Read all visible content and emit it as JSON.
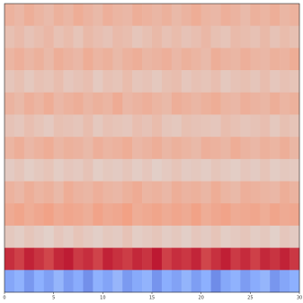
{
  "chart_data": {
    "type": "heatmap",
    "colormap": "coolwarm",
    "zlim": [
      -1,
      1
    ],
    "x": [
      0,
      1,
      2,
      3,
      4,
      5,
      6,
      7,
      8,
      9,
      10,
      11,
      12,
      13,
      14,
      15,
      16,
      17,
      18,
      19,
      20,
      21,
      22,
      23,
      24,
      25,
      26,
      27,
      28,
      29
    ],
    "xlim": [
      0,
      30
    ],
    "xticks": [
      0,
      5,
      10,
      15,
      20,
      25,
      30
    ],
    "z": [
      [
        0.32,
        0.28,
        0.35,
        0.3,
        0.26,
        0.33,
        0.29,
        0.36,
        0.31,
        0.27,
        0.34,
        0.3,
        0.28,
        0.35,
        0.32,
        0.29,
        0.33,
        0.27,
        0.31,
        0.36,
        0.3,
        0.28,
        0.34,
        0.31,
        0.26,
        0.33,
        0.3,
        0.35,
        0.29,
        0.32
      ],
      [
        0.22,
        0.26,
        0.2,
        0.24,
        0.28,
        0.21,
        0.25,
        0.19,
        0.27,
        0.23,
        0.2,
        0.26,
        0.24,
        0.18,
        0.22,
        0.27,
        0.21,
        0.25,
        0.2,
        0.23,
        0.28,
        0.22,
        0.19,
        0.26,
        0.24,
        0.21,
        0.27,
        0.2,
        0.25,
        0.22
      ],
      [
        0.3,
        0.34,
        0.29,
        0.33,
        0.27,
        0.35,
        0.31,
        0.28,
        0.36,
        0.3,
        0.33,
        0.27,
        0.32,
        0.35,
        0.29,
        0.31,
        0.34,
        0.28,
        0.33,
        0.3,
        0.26,
        0.35,
        0.31,
        0.29,
        0.34,
        0.3,
        0.28,
        0.33,
        0.31,
        0.36
      ],
      [
        0.18,
        0.22,
        0.16,
        0.21,
        0.19,
        0.24,
        0.17,
        0.2,
        0.23,
        0.15,
        0.21,
        0.19,
        0.25,
        0.18,
        0.2,
        0.16,
        0.22,
        0.24,
        0.17,
        0.21,
        0.19,
        0.23,
        0.16,
        0.2,
        0.22,
        0.18,
        0.24,
        0.17,
        0.21,
        0.19
      ],
      [
        0.31,
        0.27,
        0.34,
        0.3,
        0.36,
        0.28,
        0.32,
        0.35,
        0.29,
        0.33,
        0.3,
        0.37,
        0.28,
        0.31,
        0.34,
        0.3,
        0.27,
        0.35,
        0.32,
        0.29,
        0.33,
        0.36,
        0.3,
        0.28,
        0.34,
        0.31,
        0.29,
        0.35,
        0.3,
        0.33
      ],
      [
        0.2,
        0.17,
        0.23,
        0.19,
        0.15,
        0.22,
        0.2,
        0.18,
        0.24,
        0.16,
        0.21,
        0.19,
        0.17,
        0.23,
        0.2,
        0.25,
        0.18,
        0.16,
        0.22,
        0.2,
        0.19,
        0.17,
        0.24,
        0.21,
        0.18,
        0.2,
        0.23,
        0.16,
        0.22,
        0.19
      ],
      [
        0.3,
        0.35,
        0.28,
        0.32,
        0.36,
        0.29,
        0.33,
        0.31,
        0.27,
        0.34,
        0.3,
        0.32,
        0.36,
        0.28,
        0.31,
        0.35,
        0.29,
        0.33,
        0.3,
        0.27,
        0.34,
        0.32,
        0.29,
        0.36,
        0.31,
        0.28,
        0.33,
        0.3,
        0.35,
        0.29
      ],
      [
        0.14,
        0.18,
        0.12,
        0.16,
        0.19,
        0.13,
        0.17,
        0.15,
        0.2,
        0.12,
        0.16,
        0.14,
        0.18,
        0.13,
        0.17,
        0.11,
        0.15,
        0.19,
        0.14,
        0.16,
        0.13,
        0.18,
        0.15,
        0.12,
        0.17,
        0.14,
        0.19,
        0.13,
        0.16,
        0.15
      ],
      [
        0.32,
        0.28,
        0.35,
        0.3,
        0.33,
        0.27,
        0.36,
        0.31,
        0.29,
        0.34,
        0.3,
        0.28,
        0.33,
        0.37,
        0.3,
        0.32,
        0.28,
        0.35,
        0.31,
        0.33,
        0.29,
        0.36,
        0.3,
        0.27,
        0.34,
        0.32,
        0.3,
        0.28,
        0.35,
        0.31
      ],
      [
        0.38,
        0.42,
        0.36,
        0.4,
        0.44,
        0.37,
        0.41,
        0.39,
        0.35,
        0.43,
        0.38,
        0.4,
        0.45,
        0.36,
        0.39,
        0.42,
        0.37,
        0.41,
        0.38,
        0.44,
        0.36,
        0.4,
        0.43,
        0.37,
        0.39,
        0.41,
        0.36,
        0.42,
        0.38,
        0.4
      ],
      [
        0.16,
        0.12,
        0.18,
        0.14,
        0.1,
        0.17,
        0.13,
        0.19,
        0.15,
        0.11,
        0.16,
        0.14,
        0.2,
        0.12,
        0.15,
        0.18,
        0.13,
        0.16,
        0.11,
        0.17,
        0.14,
        0.19,
        0.12,
        0.15,
        0.18,
        0.13,
        0.16,
        0.1,
        0.17,
        0.14
      ],
      [
        0.86,
        0.8,
        0.9,
        0.84,
        0.78,
        0.88,
        0.92,
        0.82,
        0.86,
        0.79,
        0.9,
        0.85,
        0.81,
        0.88,
        0.84,
        0.93,
        0.8,
        0.86,
        0.83,
        0.89,
        0.78,
        0.85,
        0.91,
        0.82,
        0.87,
        0.8,
        0.88,
        0.84,
        0.9,
        0.83
      ],
      [
        -0.55,
        -0.48,
        -0.62,
        -0.5,
        -0.58,
        -0.45,
        -0.6,
        -0.52,
        -0.66,
        -0.49,
        -0.56,
        -0.44,
        -0.61,
        -0.53,
        -0.47,
        -0.64,
        -0.51,
        -0.57,
        -0.46,
        -0.59,
        -0.5,
        -0.68,
        -0.54,
        -0.48,
        -0.6,
        -0.52,
        -0.45,
        -0.63,
        -0.55,
        -0.5
      ]
    ]
  }
}
